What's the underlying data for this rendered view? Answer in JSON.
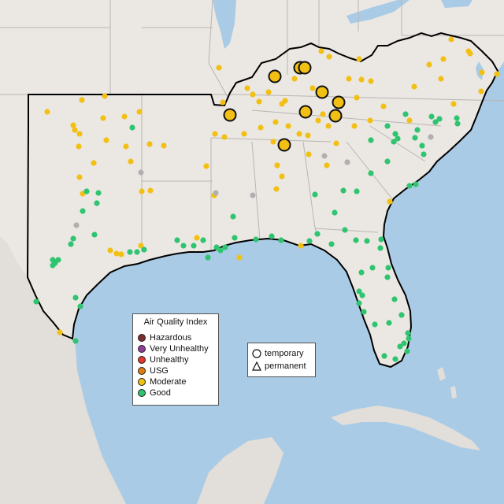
{
  "map": {
    "colors": {
      "water": "#aacbe5",
      "land": "#ebe8e4",
      "foreign_land": "#e2ded9",
      "region_border": "#000000",
      "state_line": "#b9b5b0",
      "hazardous": "#7b2d2d",
      "very_unhealthy": "#8f3f97",
      "unhealthy": "#e03a2a",
      "usg": "#e07b12",
      "moderate": "#f2c014",
      "good": "#2fc46f",
      "no_data": "#b0b0b0"
    }
  },
  "aqi_legend": {
    "title": "Air Quality Index",
    "items": [
      {
        "label": "Hazardous",
        "color": "#7b2d2d"
      },
      {
        "label": "Very Unhealthy",
        "color": "#8f3f97"
      },
      {
        "label": "Unhealthy",
        "color": "#e03a2a"
      },
      {
        "label": "USG",
        "color": "#e07b12"
      },
      {
        "label": "Moderate",
        "color": "#f2c014"
      },
      {
        "label": "Good",
        "color": "#2fc46f"
      }
    ]
  },
  "type_legend": {
    "temporary_label": "temporary",
    "permanent_label": "permanent",
    "temporary_icon": "circle-outline-icon",
    "permanent_icon": "triangle-outline-icon"
  }
}
